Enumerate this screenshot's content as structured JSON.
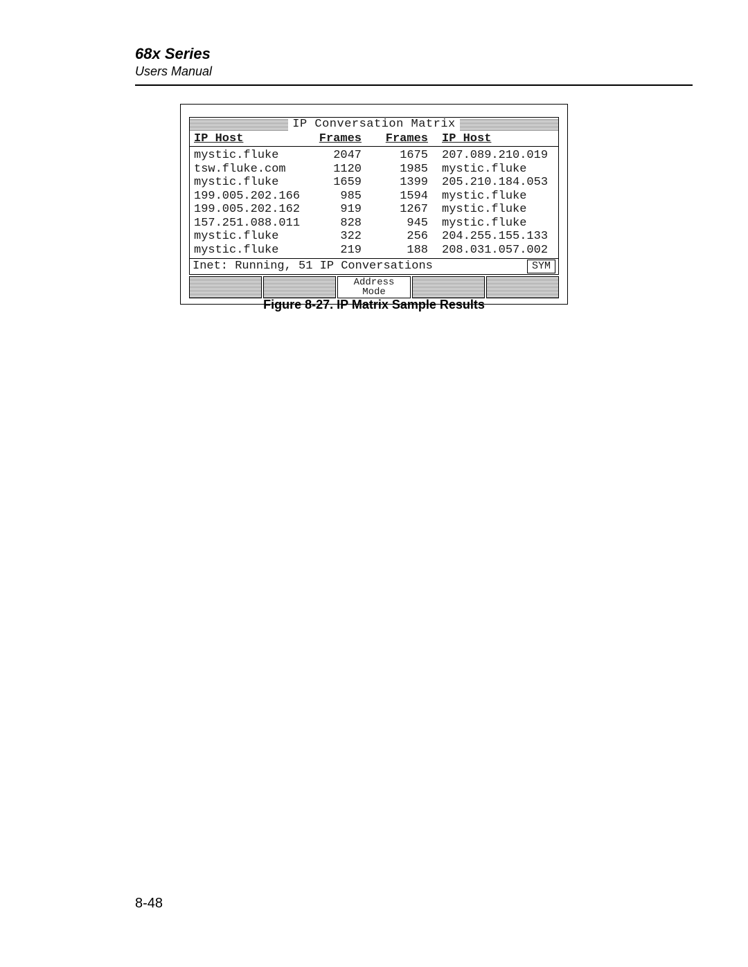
{
  "header": {
    "series_title": "68x Series",
    "manual_subtitle": "Users Manual"
  },
  "lcd": {
    "title": "IP Conversation Matrix",
    "columns": {
      "host_left": "IP Host",
      "frames_left": "Frames",
      "frames_right": "Frames",
      "host_right": "IP Host"
    },
    "rows": [
      {
        "host_l": "mystic.fluke",
        "frames_l": "2047",
        "frames_r": "1675",
        "host_r": "207.089.210.019"
      },
      {
        "host_l": "tsw.fluke.com",
        "frames_l": "1120",
        "frames_r": "1985",
        "host_r": "mystic.fluke"
      },
      {
        "host_l": "mystic.fluke",
        "frames_l": "1659",
        "frames_r": "1399",
        "host_r": "205.210.184.053"
      },
      {
        "host_l": "199.005.202.166",
        "frames_l": "985",
        "frames_r": "1594",
        "host_r": "mystic.fluke"
      },
      {
        "host_l": "199.005.202.162",
        "frames_l": "919",
        "frames_r": "1267",
        "host_r": "mystic.fluke"
      },
      {
        "host_l": "157.251.088.011",
        "frames_l": "828",
        "frames_r": "945",
        "host_r": "mystic.fluke"
      },
      {
        "host_l": "mystic.fluke",
        "frames_l": "322",
        "frames_r": "256",
        "host_r": "204.255.155.133"
      },
      {
        "host_l": "mystic.fluke",
        "frames_l": "219",
        "frames_r": "188",
        "host_r": "208.031.057.002"
      }
    ],
    "status_text": "Inet: Running, 51 IP Conversations",
    "sym_label": "SYM",
    "softkeys": {
      "k1": "",
      "k2": "",
      "k3": "Address\nMode",
      "k4": "",
      "k5": ""
    }
  },
  "caption": "Figure 8-27.  IP Matrix Sample Results",
  "page_number": "8-48"
}
